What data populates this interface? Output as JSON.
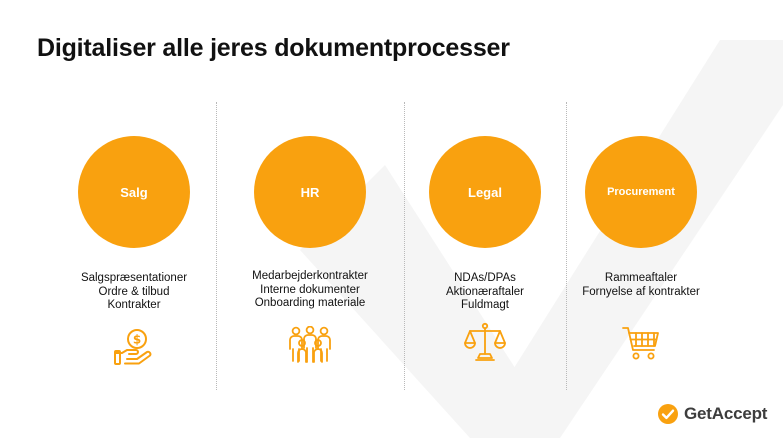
{
  "slide": {
    "title": "Digitaliser alle jeres dokumentprocesser"
  },
  "columns": [
    {
      "label": "Salg",
      "items": [
        "Salgspræsentationer",
        "Ordre & tilbud",
        "Kontrakter"
      ],
      "icon": "money-hand-icon"
    },
    {
      "label": "HR",
      "items": [
        "Medarbejderkontrakter",
        "Interne dokumenter",
        "Onboarding materiale"
      ],
      "icon": "people-group-icon"
    },
    {
      "label": "Legal",
      "items": [
        "NDAs/DPAs",
        "Aktionæraftaler",
        "Fuldmagt"
      ],
      "icon": "scales-icon"
    },
    {
      "label": "Procurement",
      "items": [
        "Rammeaftaler",
        "Fornyelse af kontrakter"
      ],
      "icon": "shopping-cart-icon"
    }
  ],
  "brand": {
    "name": "GetAccept",
    "logo_icon": "check-badge-icon"
  },
  "colors": {
    "accent": "#f9a10f",
    "text": "#111111",
    "divider": "#b9b9b9",
    "watermark": "#f4f4f4"
  }
}
